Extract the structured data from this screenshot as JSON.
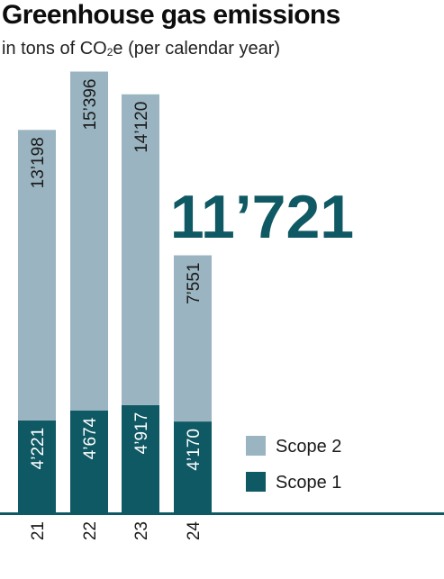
{
  "title": "Greenhouse gas emissions",
  "subtitle_pre": "in tons of CO",
  "subtitle_sub": "2",
  "subtitle_post": "e (per calendar year)",
  "highlight_value": "11’721",
  "colors": {
    "scope2": "#9ab5c1",
    "scope1": "#0f5964",
    "highlight": "#0f5964",
    "axis": "#0f5964",
    "label_dark": "#1a1a1a",
    "label_light": "#ffffff"
  },
  "chart_data": {
    "type": "bar",
    "stacked": true,
    "orientation": "vertical",
    "categories": [
      "21",
      "22",
      "23",
      "24"
    ],
    "series": [
      {
        "name": "Scope 1",
        "values": [
          4221,
          4674,
          4917,
          4170
        ],
        "labels": [
          "4’221",
          "4’674",
          "4’917",
          "4’170"
        ],
        "color": "#0f5964"
      },
      {
        "name": "Scope 2",
        "values": [
          13198,
          15396,
          14120,
          7551
        ],
        "labels": [
          "13’198",
          "15’396",
          "14’120",
          "7’551"
        ],
        "color": "#9ab5c1"
      }
    ],
    "legend": [
      "Scope 2",
      "Scope 1"
    ],
    "legend_position": "right",
    "grid": false
  }
}
